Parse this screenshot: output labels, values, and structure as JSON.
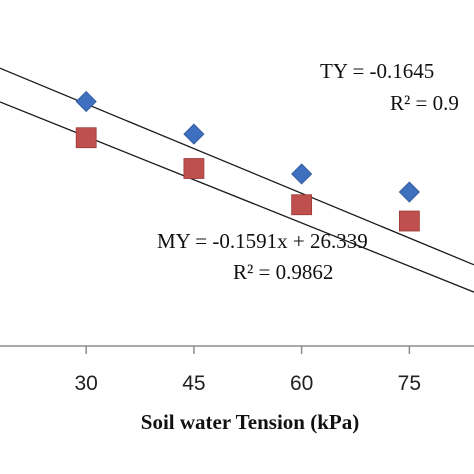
{
  "chart_data": {
    "type": "scatter",
    "xlabel": "Soil water Tension (kPa)",
    "xticks": [
      "30",
      "45",
      "60",
      "75"
    ],
    "xlim": [
      18,
      84
    ],
    "ylim": [
      10,
      28
    ],
    "grid": false,
    "series": [
      {
        "marker": "diamond",
        "color": "#3f6fbf",
        "x": [
          30,
          45,
          60,
          75
        ],
        "y": [
          23.5,
          21.7,
          19.5,
          18.5
        ],
        "trendline": {
          "slope": -0.1645,
          "intercept": 28.3
        }
      },
      {
        "marker": "square",
        "color": "#c0504d",
        "x": [
          30,
          45,
          60,
          75
        ],
        "y": [
          21.5,
          19.8,
          17.8,
          16.9
        ],
        "trendline": {
          "slope": -0.1591,
          "intercept": 26.339
        }
      }
    ],
    "annotations": {
      "ty_equation": "TY = -0.1645",
      "ty_r2": "R² = 0.9",
      "my_equation": "MY = -0.1591x + 26.339",
      "my_r2": "R² = 0.9862"
    }
  }
}
